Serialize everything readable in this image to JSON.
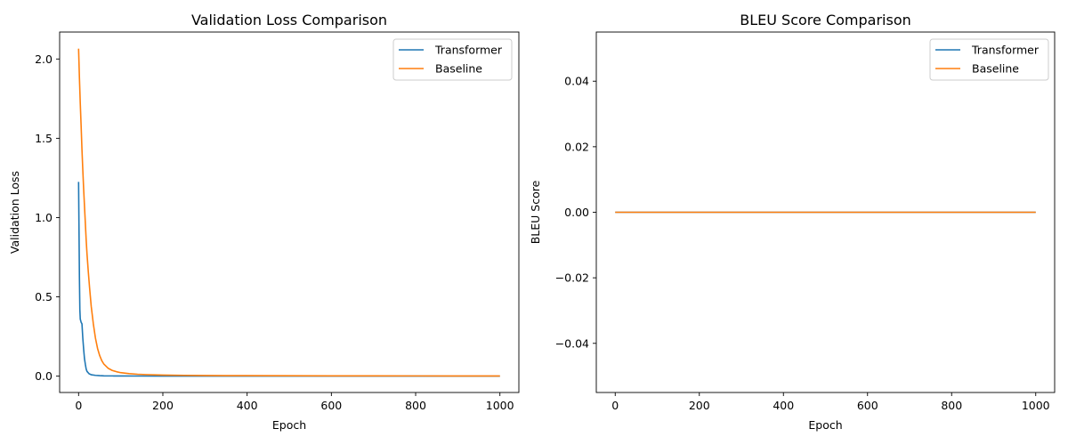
{
  "chart_data": [
    {
      "type": "line",
      "title": "Validation Loss Comparison",
      "xlabel": "Epoch",
      "ylabel": "Validation Loss",
      "xlim": [
        -45,
        1045
      ],
      "ylim": [
        -0.103,
        2.17
      ],
      "xticks": [
        0,
        200,
        400,
        600,
        800,
        1000
      ],
      "xtick_labels": [
        "0",
        "200",
        "400",
        "600",
        "800",
        "1000"
      ],
      "yticks": [
        0.0,
        0.5,
        1.0,
        1.5,
        2.0
      ],
      "ytick_labels": [
        "0.0",
        "0.5",
        "1.0",
        "1.5",
        "2.0"
      ],
      "grid": false,
      "legend_position": "upper right",
      "series": [
        {
          "name": "Transformer",
          "color": "#1f77b4",
          "x": [
            0,
            1,
            2,
            3,
            4,
            5,
            6,
            8,
            10,
            12,
            14,
            16,
            18,
            20,
            25,
            30,
            40,
            50,
            60,
            80,
            100,
            150,
            200,
            300,
            400,
            500,
            600,
            700,
            800,
            900,
            1000
          ],
          "y": [
            1.225,
            0.92,
            0.62,
            0.42,
            0.36,
            0.35,
            0.34,
            0.33,
            0.24,
            0.17,
            0.11,
            0.075,
            0.045,
            0.03,
            0.015,
            0.009,
            0.005,
            0.003,
            0.002,
            0.0015,
            0.001,
            0.0008,
            0.0005,
            0.0004,
            0.0003,
            0.0003,
            0.0002,
            0.0002,
            0.0002,
            0.0001,
            0.0001
          ]
        },
        {
          "name": "Baseline",
          "color": "#ff7f0e",
          "x": [
            0,
            2,
            4,
            6,
            8,
            10,
            12,
            15,
            18,
            20,
            23,
            26,
            30,
            35,
            40,
            45,
            50,
            55,
            60,
            70,
            80,
            90,
            100,
            120,
            140,
            160,
            180,
            200,
            250,
            300,
            400,
            500,
            600,
            700,
            800,
            900,
            1000
          ],
          "y": [
            2.065,
            1.88,
            1.72,
            1.58,
            1.43,
            1.3,
            1.18,
            1.02,
            0.86,
            0.77,
            0.66,
            0.56,
            0.44,
            0.33,
            0.24,
            0.175,
            0.13,
            0.098,
            0.076,
            0.05,
            0.036,
            0.028,
            0.022,
            0.016,
            0.012,
            0.01,
            0.008,
            0.007,
            0.005,
            0.004,
            0.003,
            0.0025,
            0.002,
            0.0018,
            0.0015,
            0.0012,
            0.001
          ]
        }
      ]
    },
    {
      "type": "line",
      "title": "BLEU Score Comparison",
      "xlabel": "Epoch",
      "ylabel": "BLEU Score",
      "xlim": [
        -45,
        1045
      ],
      "ylim": [
        -0.055,
        0.055
      ],
      "xticks": [
        0,
        200,
        400,
        600,
        800,
        1000
      ],
      "xtick_labels": [
        "0",
        "200",
        "400",
        "600",
        "800",
        "1000"
      ],
      "yticks": [
        -0.04,
        -0.02,
        0.0,
        0.02,
        0.04
      ],
      "ytick_labels": [
        "−0.04",
        "−0.02",
        "0.00",
        "0.02",
        "0.04"
      ],
      "grid": false,
      "legend_position": "upper right",
      "series": [
        {
          "name": "Transformer",
          "color": "#1f77b4",
          "x": [
            0,
            1000
          ],
          "y": [
            0,
            0
          ]
        },
        {
          "name": "Baseline",
          "color": "#ff7f0e",
          "x": [
            0,
            1000
          ],
          "y": [
            0,
            0
          ]
        }
      ]
    }
  ]
}
